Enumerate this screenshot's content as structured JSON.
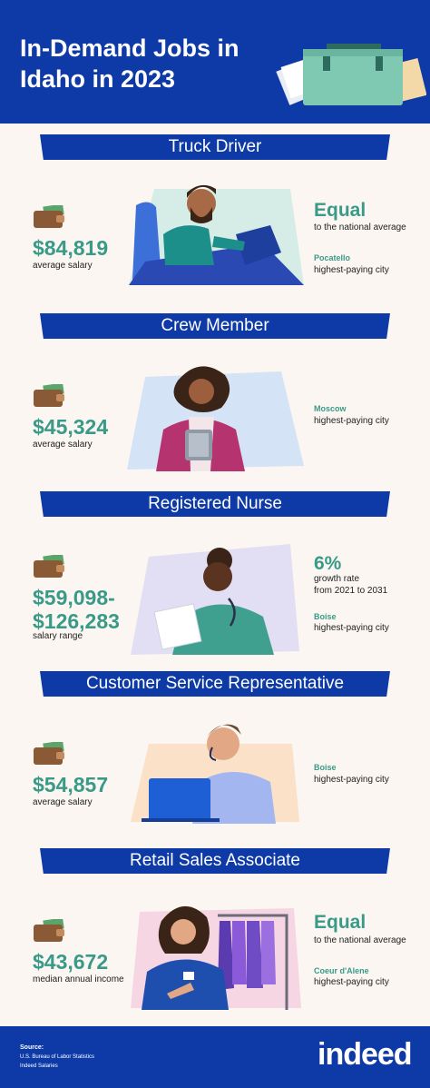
{
  "header": {
    "title": "In-Demand Jobs in\nIdaho in 2023",
    "art_icon": "briefcase-icon"
  },
  "colors": {
    "brand_blue": "#0d3aa6",
    "accent_teal": "#3a9a88",
    "background": "#fbf6f1"
  },
  "jobs": [
    {
      "title": "Truck Driver",
      "salary": "$84,819",
      "salary_label": "average salary",
      "stat_big": "Equal",
      "stat_small": "to the national average",
      "city": "Pocatello",
      "city_label": "highest-paying city"
    },
    {
      "title": "Crew Member",
      "salary": "$45,324",
      "salary_label": "average salary",
      "city": "Moscow",
      "city_label": "highest-paying city"
    },
    {
      "title": "Registered Nurse",
      "salary": "$59,098-\n$126,283",
      "salary_label": "salary range",
      "stat_big": "6%",
      "stat_small": "growth rate\nfrom 2021 to 2031",
      "city": "Boise",
      "city_label": "highest-paying city"
    },
    {
      "title": "Customer Service Representative",
      "salary": "$54,857",
      "salary_label": "average salary",
      "city": "Boise",
      "city_label": "highest-paying city"
    },
    {
      "title": "Retail Sales Associate",
      "salary": "$43,672",
      "salary_label": "median annual income",
      "stat_big": "Equal",
      "stat_small": "to the national average",
      "city": "Coeur d'Alene",
      "city_label": "highest-paying city"
    }
  ],
  "footer": {
    "source_title": "Source:",
    "sources": [
      "U.S. Bureau of Labor Statistics",
      "Indeed Salaries"
    ],
    "logo": "indeed"
  }
}
